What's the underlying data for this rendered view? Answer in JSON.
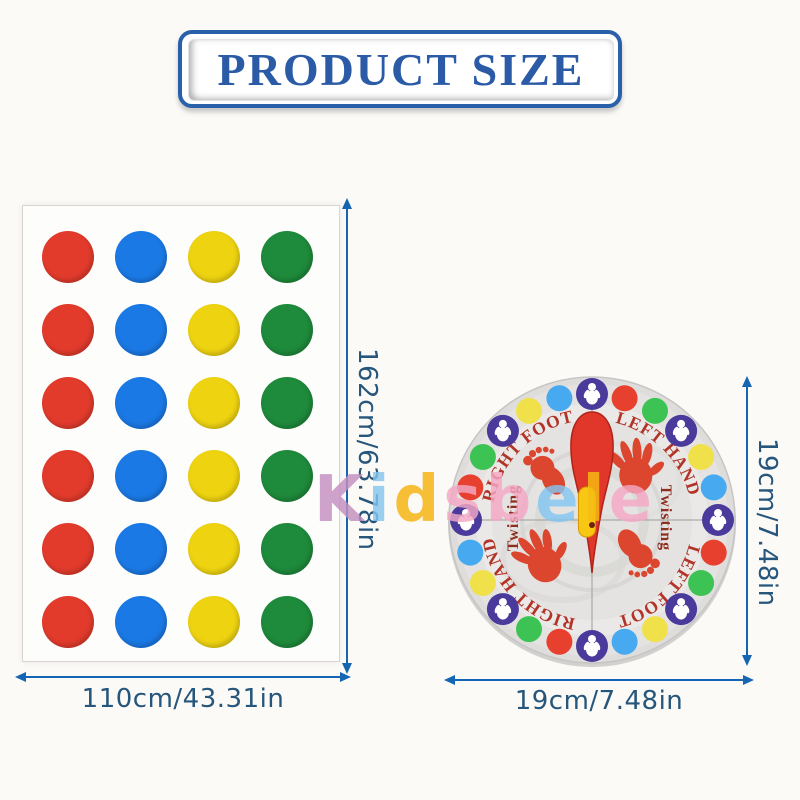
{
  "title": {
    "text": "PRODUCT SIZE",
    "text_color": "#2b5aa6",
    "border_color": "#2a5fa9"
  },
  "watermark": {
    "text": "Kidsbele",
    "letters": [
      {
        "char": "K",
        "color": "#c48fc0"
      },
      {
        "char": "i",
        "color": "#85c6ef"
      },
      {
        "char": "d",
        "color": "#f5b30c"
      },
      {
        "char": "s",
        "color": "#f4a8c5"
      },
      {
        "char": "b",
        "color": "#f4a8c5"
      },
      {
        "char": "e",
        "color": "#84c6f1"
      },
      {
        "char": "l",
        "color": "#f6bd12"
      },
      {
        "char": "e",
        "color": "#f4a8c5"
      }
    ]
  },
  "mat": {
    "rows": 6,
    "columns": [
      "red",
      "blue",
      "yellow",
      "green"
    ],
    "palette": {
      "red": "#e23b2c",
      "blue": "#1b79e5",
      "yellow": "#eed311",
      "green": "#1e8a3b"
    },
    "height_label": "162cm/63.78in",
    "width_label": "110cm/43.31in"
  },
  "spinner": {
    "quadrants": [
      {
        "position": "top-left",
        "label": "RIGHT FOOT",
        "print": "foot"
      },
      {
        "position": "top-right",
        "label": "LEFT HAND",
        "print": "hand"
      },
      {
        "position": "bottom-left",
        "label": "RIGHT HAND",
        "print": "hand"
      },
      {
        "position": "bottom-right",
        "label": "LEFT FOOT",
        "print": "foot"
      }
    ],
    "center_word": "Twisting",
    "edge_dots_clockwise_from_top": [
      "purple-icon",
      "red",
      "green",
      "purple-icon",
      "yellow",
      "blue",
      "purple-icon",
      "red",
      "green",
      "purple-icon",
      "yellow",
      "blue",
      "purple-icon",
      "red",
      "green",
      "purple-icon",
      "yellow",
      "blue",
      "purple-icon",
      "red",
      "green",
      "purple-icon",
      "yellow",
      "blue"
    ],
    "palette": {
      "red": "#e8402f",
      "blue": "#47a9ef",
      "yellow": "#f0e14a",
      "green": "#3dc354",
      "purple": "#4a3a9c"
    },
    "print_color": "#dc452e",
    "pointer": {
      "body": "#e0372a",
      "outline": "#b02318",
      "stripe": "#f8c714"
    },
    "board_color": "#dedddb",
    "height_label": "19cm/7.48in",
    "width_label": "19cm/7.48in"
  },
  "dimension_style": {
    "arrow_color": "#1465b4",
    "text_color": "#26567b"
  }
}
